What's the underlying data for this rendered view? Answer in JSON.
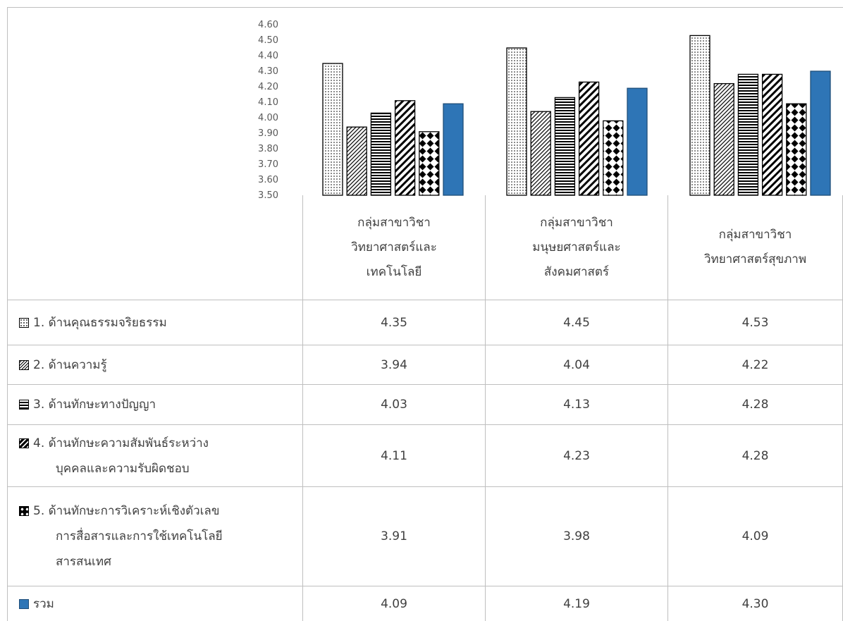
{
  "chart_data": {
    "type": "bar",
    "categories": [
      [
        "กลุ่มสาขาวิชา",
        "วิทยาศาสตร์และ",
        "เทคโนโลยี"
      ],
      [
        "กลุ่มสาขาวิชา",
        "มนุษยศาสตร์และ",
        "สังคมศาสตร์"
      ],
      [
        "กลุ่มสาขาวิชา",
        "วิทยาศาสตร์สุขภาพ"
      ]
    ],
    "series": [
      {
        "name": "1. ด้านคุณธรรมจริยธรรม",
        "name_lines": [
          "1. ด้านคุณธรรมจริยธรรม"
        ],
        "pattern": "dots",
        "values": [
          4.35,
          4.45,
          4.53
        ],
        "display": [
          "4.35",
          "4.45",
          "4.53"
        ]
      },
      {
        "name": "2. ด้านความรู้",
        "name_lines": [
          "2. ด้านความรู้"
        ],
        "pattern": "diagonal-fine",
        "values": [
          3.94,
          4.04,
          4.22
        ],
        "display": [
          "3.94",
          "4.04",
          "4.22"
        ]
      },
      {
        "name": "3. ด้านทักษะทางปัญญา",
        "name_lines": [
          "3. ด้านทักษะทางปัญญา"
        ],
        "pattern": "horizontal",
        "values": [
          4.03,
          4.13,
          4.28
        ],
        "display": [
          "4.03",
          "4.13",
          "4.28"
        ]
      },
      {
        "name": "4. ด้านทักษะความสัมพันธ์ระหว่างบุคคลและความรับผิดชอบ",
        "name_lines": [
          "4. ด้านทักษะความสัมพันธ์ระหว่าง",
          "บุคคลและความรับผิดชอบ"
        ],
        "pattern": "diagonal-wide",
        "values": [
          4.11,
          4.23,
          4.28
        ],
        "display": [
          "4.11",
          "4.23",
          "4.28"
        ]
      },
      {
        "name": "5. ด้านทักษะการวิเคราะห์เชิงตัวเลข การสื่อสารและการใช้เทคโนโลยีสารสนเทศ",
        "name_lines": [
          "5. ด้านทักษะการวิเคราะห์เชิงตัวเลข",
          "การสื่อสารและการใช้เทคโนโลยี",
          "สารสนเทศ"
        ],
        "pattern": "diamonds",
        "values": [
          3.91,
          3.98,
          4.09
        ],
        "display": [
          "3.91",
          "3.98",
          "4.09"
        ]
      },
      {
        "name": "รวม",
        "name_lines": [
          "รวม"
        ],
        "pattern": "solid",
        "color": "#2e75b6",
        "values": [
          4.09,
          4.19,
          4.3
        ],
        "display": [
          "4.09",
          "4.19",
          "4.30"
        ]
      }
    ],
    "ylim": [
      3.5,
      4.6
    ],
    "yticks": [
      "3.50",
      "3.60",
      "3.70",
      "3.80",
      "3.90",
      "4.00",
      "4.10",
      "4.20",
      "4.30",
      "4.40",
      "4.50",
      "4.60"
    ],
    "grid": false,
    "legend": "data-table",
    "colors": {
      "bar_stroke": "#000000",
      "total_fill": "#2e75b6",
      "border": "#bfbfbf"
    }
  }
}
